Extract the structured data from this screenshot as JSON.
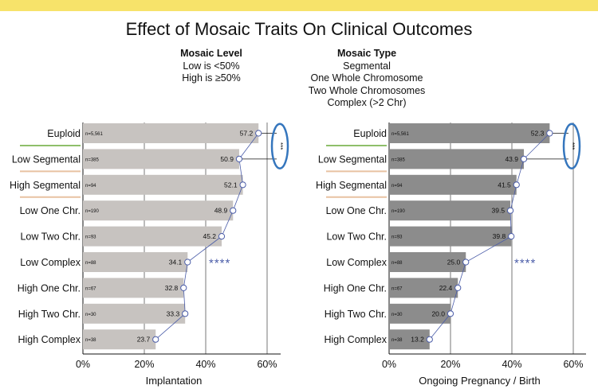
{
  "title": "Effect of Mosaic Traits On Clinical Outcomes",
  "legend_left": {
    "heading": "Mosaic Level",
    "lines": [
      "Low is <50%",
      "High is ≥50%"
    ]
  },
  "legend_right": {
    "heading": "Mosaic Type",
    "lines": [
      "Segmental",
      "One Whole Chromosome",
      "Two Whole Chromosomes",
      "Complex (>2 Chr)"
    ]
  },
  "colors": {
    "bar_left": "#c7c3c0",
    "bar_right": "#8c8c8c",
    "line": "#4a5ca8",
    "oval": "#3576bd",
    "underline_green": "#8fbf6a",
    "underline_orange": "#e8c2a2",
    "stars": "#4a5ca8"
  },
  "chart_data": [
    {
      "type": "bar",
      "orientation": "horizontal",
      "categories": [
        "Euploid",
        "Low Segmental",
        "High Segmental",
        "Low One Chr.",
        "Low Two Chr.",
        "Low Complex",
        "High One Chr.",
        "High Two Chr.",
        "High Complex"
      ],
      "n_labels": [
        "n=5,561",
        "n=385",
        "n=94",
        "n=190",
        "n=93",
        "n=88",
        "n=67",
        "n=30",
        "n=38"
      ],
      "values": [
        57.2,
        50.9,
        52.1,
        48.9,
        45.2,
        34.1,
        32.8,
        33.3,
        23.7
      ],
      "value_labels": [
        "57.2",
        "50.9",
        "52.1",
        "48.9",
        "45.2",
        "34.1",
        "32.8",
        "33.3",
        "23.7"
      ],
      "xlabel": "Implantation",
      "xlim": [
        0,
        65
      ],
      "xticks": [
        "0%",
        "20%",
        "40%",
        "60%"
      ],
      "xtick_values": [
        0,
        20,
        40,
        60
      ],
      "annotations": {
        "oval_text": "***",
        "stars": "****"
      }
    },
    {
      "type": "bar",
      "orientation": "horizontal",
      "categories": [
        "Euploid",
        "Low Segmental",
        "High Segmental",
        "Low One Chr.",
        "Low Two Chr.",
        "Low Complex",
        "High One Chr.",
        "High Two Chr.",
        "High Complex"
      ],
      "n_labels": [
        "n=5,561",
        "n=385",
        "n=94",
        "n=190",
        "n=93",
        "n=88",
        "n=67",
        "n=30",
        "n=38"
      ],
      "values": [
        52.3,
        43.9,
        41.5,
        39.5,
        39.8,
        25.0,
        22.4,
        20.0,
        13.2
      ],
      "value_labels": [
        "52.3",
        "43.9",
        "41.5",
        "39.5",
        "39.8",
        "25.0",
        "22.4",
        "20.0",
        "13.2"
      ],
      "xlabel": "Ongoing Pregnancy / Birth",
      "xlim": [
        0,
        65
      ],
      "xticks": [
        "0%",
        "20%",
        "40%",
        "60%"
      ],
      "xtick_values": [
        0,
        20,
        40,
        60
      ],
      "annotations": {
        "oval_text": "***",
        "stars": "****"
      }
    }
  ]
}
